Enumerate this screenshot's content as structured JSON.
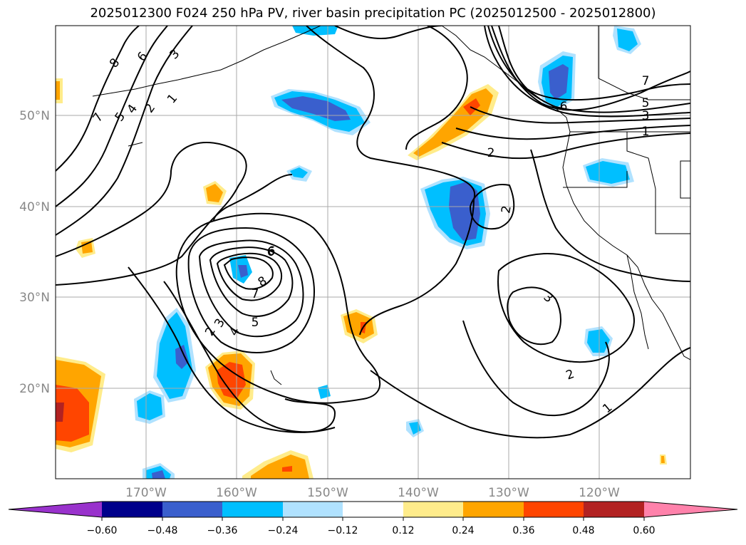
{
  "title": "2025012300 F024 250 hPa PV, river basin precipitation PC (2025012500 - 2025012800)",
  "lat_labels": [
    "50°N",
    "40°N",
    "30°N",
    "20°N"
  ],
  "lon_labels": [
    "170°W",
    "160°W",
    "150°W",
    "140°W",
    "130°W",
    "120°W"
  ],
  "contour_labels": [
    "8",
    "6",
    "3",
    "7",
    "5",
    "4",
    "2",
    "1",
    "6",
    "8",
    "7",
    "6",
    "5",
    "4",
    "3",
    "2",
    "2",
    "7",
    "5",
    "3",
    "1",
    "2",
    "3",
    "2",
    "1",
    "6"
  ],
  "colorbar": {
    "ticks": [
      "−0.60",
      "−0.48",
      "−0.36",
      "−0.24",
      "−0.12",
      "0.12",
      "0.24",
      "0.36",
      "0.48",
      "0.60"
    ],
    "colors": [
      "#9932cc",
      "#00008b",
      "#3a5fcd",
      "#00bfff",
      "#b0e2ff",
      "#ffffff",
      "#ffec8b",
      "#ffa500",
      "#ff4500",
      "#b22222",
      "#ff82ab"
    ]
  },
  "shading_colors": {
    "neg_light": "#b0e2ff",
    "neg_mid": "#00bfff",
    "neg_dark": "#3a5fcd",
    "pos_light": "#ffec8b",
    "pos_mid": "#ffa500",
    "pos_dark": "#ff4500",
    "pos_deep": "#b22222"
  }
}
